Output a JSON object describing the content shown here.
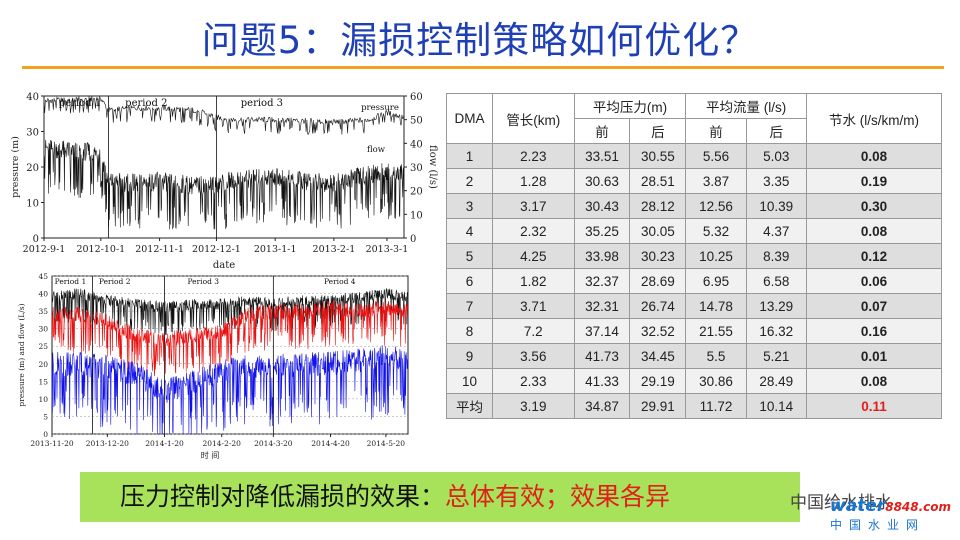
{
  "slide": {
    "title": "问题5：漏损控制策略如何优化？",
    "accent_line_color": "#f0a21c",
    "title_color": "#1f3fb5"
  },
  "chart_data": [
    {
      "type": "line",
      "periods": [
        "period 1",
        "period 2",
        "period 3"
      ],
      "annotations": [
        "pressure",
        "flow"
      ],
      "xlabel": "date",
      "ylabel_left": "pressure (m)",
      "ylabel_right": "flow (l/s)",
      "x_ticks": [
        "2012-9-1",
        "2012-10-1",
        "2012-11-1",
        "2012-12-1",
        "2013-1-1",
        "2013-2-1",
        "2013-3-1"
      ],
      "y_left_ticks": [
        "0",
        "10",
        "20",
        "30",
        "40"
      ],
      "y_right_ticks": [
        "0",
        "10",
        "20",
        "30",
        "40",
        "50",
        "60"
      ],
      "ylim_left": [
        0,
        40
      ],
      "ylim_right": [
        0,
        60
      ],
      "series": [
        {
          "name": "pressure",
          "axis": "right",
          "color": "#111111",
          "x": [
            "2012-9-1",
            "2012-9-15",
            "2012-10-1",
            "2012-10-5",
            "2012-10-20",
            "2012-11-1",
            "2012-11-20",
            "2012-12-1",
            "2012-12-10",
            "2013-1-1",
            "2013-2-1",
            "2013-2-20",
            "2013-3-1",
            "2013-3-10"
          ],
          "values": [
            58,
            58.5,
            59,
            54,
            55,
            55,
            54,
            51,
            50,
            50,
            49,
            50,
            53,
            51
          ]
        },
        {
          "name": "flow",
          "axis": "right",
          "color": "#111111",
          "x": [
            "2012-9-1",
            "2012-9-15",
            "2012-10-1",
            "2012-10-5",
            "2012-10-20",
            "2012-11-1",
            "2012-11-20",
            "2012-12-1",
            "2012-12-15",
            "2013-1-1",
            "2013-1-15",
            "2013-2-1",
            "2013-2-15",
            "2013-3-1",
            "2013-3-10"
          ],
          "values": [
            38,
            37,
            36,
            24,
            23,
            24,
            22,
            23,
            25,
            26,
            24,
            23,
            26,
            28,
            27
          ]
        }
      ]
    },
    {
      "type": "line",
      "periods": [
        "Period 1",
        "Period 2",
        "Period 3",
        "Period 4"
      ],
      "xlabel": "时 间",
      "ylabel": "pressure (m) and flow (L/s)",
      "x_ticks": [
        "2013-11-20",
        "2013-12-20",
        "2014-1-20",
        "2014-2-20",
        "2014-3-20",
        "2014-4-20",
        "2014-5-20"
      ],
      "y_ticks": [
        "0",
        "5",
        "10",
        "15",
        "20",
        "25",
        "30",
        "35",
        "40",
        "45"
      ],
      "ylim": [
        0,
        45
      ],
      "series": [
        {
          "name": "",
          "color": "#111111",
          "x": [
            "2013-11-20",
            "2013-12-5",
            "2013-12-20",
            "2014-1-5",
            "2014-1-20",
            "2014-2-5",
            "2014-2-20",
            "2014-3-5",
            "2014-3-20",
            "2014-4-5",
            "2014-4-20",
            "2014-5-5",
            "2014-5-20",
            "2014-6-1"
          ],
          "values": [
            39,
            40,
            38,
            37,
            36,
            37,
            37,
            38,
            37,
            38,
            38,
            39,
            40,
            39
          ]
        },
        {
          "name": "",
          "color": "#e81010",
          "x": [
            "2013-11-20",
            "2013-12-5",
            "2013-12-20",
            "2014-1-5",
            "2014-1-20",
            "2014-2-5",
            "2014-2-20",
            "2014-3-5",
            "2014-3-20",
            "2014-4-5",
            "2014-4-20",
            "2014-5-5",
            "2014-5-20",
            "2014-6-1"
          ],
          "values": [
            34,
            34,
            32,
            28,
            27,
            28,
            29,
            34,
            35,
            35,
            36,
            35,
            36,
            35
          ]
        },
        {
          "name": "",
          "color": "#1010e8",
          "x": [
            "2013-11-20",
            "2013-12-5",
            "2013-12-20",
            "2014-1-5",
            "2014-1-20",
            "2014-2-5",
            "2014-2-20",
            "2014-3-5",
            "2014-3-20",
            "2014-4-5",
            "2014-4-20",
            "2014-5-5",
            "2014-5-20",
            "2014-6-1"
          ],
          "values": [
            20,
            20,
            19,
            17,
            12,
            15,
            18,
            19,
            19,
            20,
            20,
            21,
            22,
            21
          ]
        }
      ]
    },
    {
      "type": "table",
      "headers": {
        "dma": "DMA",
        "length": "管长(km)",
        "pressure_group": "平均压力(m)",
        "flow_group": "平均流量 (l/s)",
        "saving": "节水 (l/s/km/m)",
        "before": "前",
        "after": "后"
      },
      "rows": [
        [
          "1",
          "2.23",
          "33.51",
          "30.55",
          "5.56",
          "5.03",
          "0.08"
        ],
        [
          "2",
          "1.28",
          "30.63",
          "28.51",
          "3.87",
          "3.35",
          "0.19"
        ],
        [
          "3",
          "3.17",
          "30.43",
          "28.12",
          "12.56",
          "10.39",
          "0.30"
        ],
        [
          "4",
          "2.32",
          "35.25",
          "30.05",
          "5.32",
          "4.37",
          "0.08"
        ],
        [
          "5",
          "4.25",
          "33.98",
          "30.23",
          "10.25",
          "8.39",
          "0.12"
        ],
        [
          "6",
          "1.82",
          "32.37",
          "28.69",
          "6.95",
          "6.58",
          "0.06"
        ],
        [
          "7",
          "3.71",
          "32.31",
          "26.74",
          "14.78",
          "13.29",
          "0.07"
        ],
        [
          "8",
          "7.2",
          "37.14",
          "32.52",
          "21.55",
          "16.32",
          "0.16"
        ],
        [
          "9",
          "3.56",
          "41.73",
          "34.45",
          "5.5",
          "5.21",
          "0.01"
        ],
        [
          "10",
          "2.33",
          "41.33",
          "29.19",
          "30.86",
          "28.49",
          "0.08"
        ],
        [
          "平均",
          "3.19",
          "34.87",
          "29.91",
          "11.72",
          "10.14",
          "0.11"
        ]
      ],
      "highlight_color": "#e0201a"
    }
  ],
  "banner": {
    "text": "压力控制对降低漏损的效果：",
    "accent": "总体有效；效果各异",
    "background": "#a8e25a",
    "accent_color": "#e0201a"
  },
  "watermark": {
    "line1": "中国给水排水",
    "logo": "water",
    "logo_num": "8848.com",
    "line2": "中国水业网"
  }
}
